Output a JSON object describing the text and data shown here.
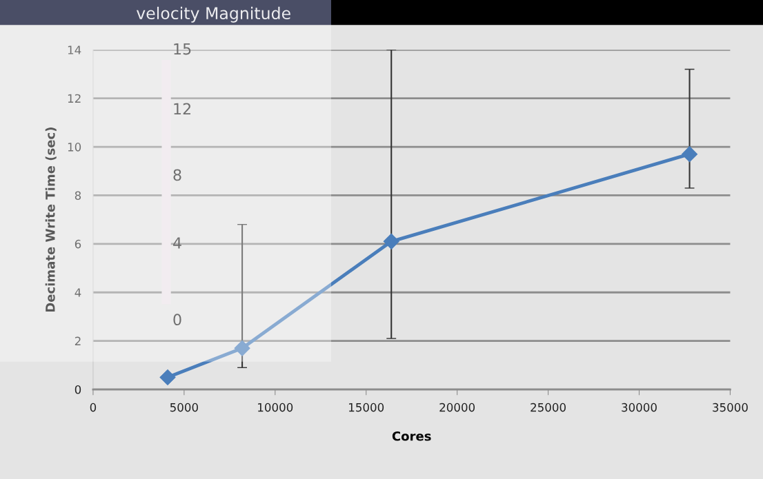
{
  "chart_data": {
    "type": "line",
    "xlabel": "Cores",
    "ylabel": "Decimate Write Time (sec)",
    "x": [
      4096,
      8192,
      16384,
      32768
    ],
    "series": [
      {
        "color": "#4a7ebb",
        "values": [
          0.5,
          1.7,
          6.1,
          9.7
        ],
        "errors": [
          null,
          [
            0.9,
            6.8
          ],
          [
            2.1,
            14
          ],
          [
            8.3,
            13.2
          ]
        ]
      }
    ],
    "xlim": [
      0,
      35000
    ],
    "xticks": [
      0,
      5000,
      10000,
      15000,
      20000,
      25000,
      30000,
      35000
    ],
    "ylim": [
      0,
      14
    ],
    "yticks": [
      0,
      2,
      4,
      6,
      8,
      10,
      12,
      14
    ],
    "grid": "y",
    "marker": "diamond",
    "line_style": "solid",
    "legend": false,
    "annotations": [
      "velocity Magnitude",
      "15",
      "12",
      "8",
      "4",
      "0"
    ]
  }
}
